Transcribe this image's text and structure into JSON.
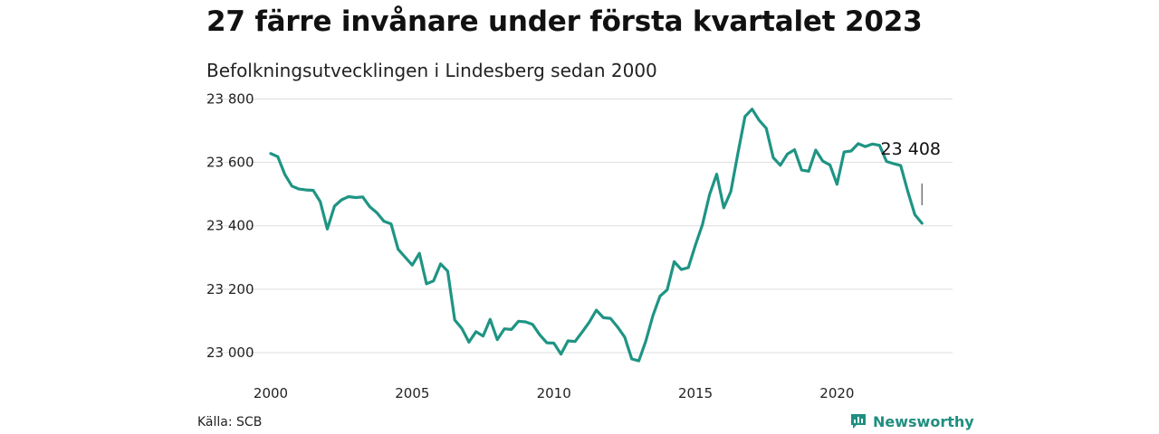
{
  "title": "27 färre invånare under första kvartalet 2023",
  "subtitle": "Befolkningsutvecklingen i Lindesberg sedan 2000",
  "source": "Källa: SCB",
  "brand": {
    "name": "Newsworthy",
    "icon": "newsworthy-logo-icon",
    "color": "#1f8f80"
  },
  "chart_data": {
    "type": "line",
    "title": "27 färre invånare under första kvartalet 2023",
    "subtitle": "Befolkningsutvecklingen i Lindesberg sedan 2000",
    "xlabel": "",
    "ylabel": "",
    "xlim": [
      2000,
      2023.25
    ],
    "ylim": [
      22960,
      23830
    ],
    "grid": "horizontal",
    "legend": "none",
    "line_color": "#1f9484",
    "x_ticks": [
      {
        "value": 2000,
        "label": "2000"
      },
      {
        "value": 2005,
        "label": "2005"
      },
      {
        "value": 2010,
        "label": "2010"
      },
      {
        "value": 2015,
        "label": "2015"
      },
      {
        "value": 2020,
        "label": "2020"
      }
    ],
    "y_ticks": [
      {
        "value": 23000,
        "label": "23 000"
      },
      {
        "value": 23200,
        "label": "23 200"
      },
      {
        "value": 23400,
        "label": "23 400"
      },
      {
        "value": 23600,
        "label": "23 600"
      },
      {
        "value": 23800,
        "label": "23 800"
      }
    ],
    "annotation": {
      "x": 2023.0,
      "y": 23408,
      "label": "23 408"
    },
    "series": [
      {
        "x": [
          2000.0,
          2000.25,
          2000.5,
          2000.75,
          2001.0,
          2001.25,
          2001.5,
          2001.75,
          2002.0,
          2002.25,
          2002.5,
          2002.75,
          2003.0,
          2003.25,
          2003.5,
          2003.75,
          2004.0,
          2004.25,
          2004.5,
          2004.75,
          2005.0,
          2005.25,
          2005.5,
          2005.75,
          2006.0,
          2006.25,
          2006.5,
          2006.75,
          2007.0,
          2007.25,
          2007.5,
          2007.75,
          2008.0,
          2008.25,
          2008.5,
          2008.75,
          2009.0,
          2009.25,
          2009.5,
          2009.75,
          2010.0,
          2010.25,
          2010.5,
          2010.75,
          2011.0,
          2011.25,
          2011.5,
          2011.75,
          2012.0,
          2012.25,
          2012.5,
          2012.75,
          2013.0,
          2013.25,
          2013.5,
          2013.75,
          2014.0,
          2014.25,
          2014.5,
          2014.75,
          2015.0,
          2015.25,
          2015.5,
          2015.75,
          2016.0,
          2016.25,
          2016.5,
          2016.75,
          2017.0,
          2017.25,
          2017.5,
          2017.75,
          2018.0,
          2018.25,
          2018.5,
          2018.75,
          2019.0,
          2019.25,
          2019.5,
          2019.75,
          2020.0,
          2020.25,
          2020.5,
          2020.75,
          2021.0,
          2021.25,
          2021.5,
          2021.75,
          2022.0,
          2022.25,
          2022.5,
          2022.75,
          2023.0
        ],
        "values": [
          23628,
          23618,
          23562,
          23525,
          23516,
          23513,
          23512,
          23476,
          23390,
          23462,
          23482,
          23492,
          23489,
          23491,
          23460,
          23441,
          23414,
          23406,
          23326,
          23301,
          23276,
          23313,
          23217,
          23226,
          23280,
          23257,
          23103,
          23076,
          23033,
          23066,
          23052,
          23105,
          23041,
          23075,
          23073,
          23099,
          23097,
          23089,
          23056,
          23031,
          23030,
          22995,
          23037,
          23035,
          23065,
          23096,
          23134,
          23110,
          23108,
          23081,
          23049,
          22980,
          22974,
          23037,
          23117,
          23178,
          23198,
          23287,
          23262,
          23268,
          23339,
          23404,
          23499,
          23563,
          23457,
          23508,
          23628,
          23745,
          23768,
          23733,
          23708,
          23615,
          23591,
          23627,
          23640,
          23576,
          23572,
          23639,
          23604,
          23592,
          23531,
          23633,
          23636,
          23659,
          23650,
          23658,
          23654,
          23603,
          23596,
          23590,
          23509,
          23435,
          23408
        ]
      }
    ]
  }
}
